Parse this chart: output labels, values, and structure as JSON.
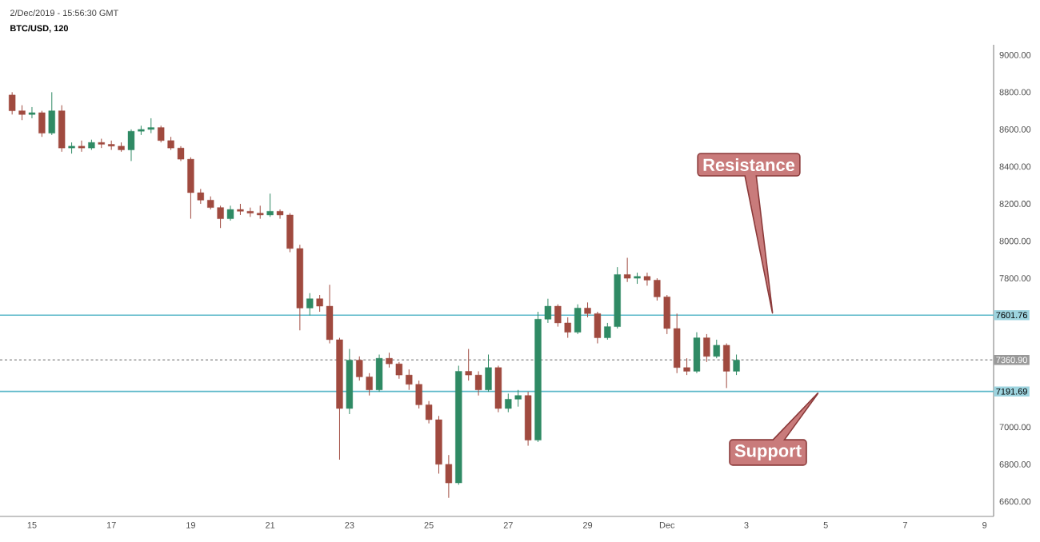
{
  "chart_data": {
    "type": "candlestick",
    "title": "BTC/USD, 120",
    "annotations": [
      "2/Dec/2019 - 15:56:30 GMT",
      "Resistance",
      "Support"
    ],
    "x": [
      "2019-11-14T12:00",
      "2019-11-14T18:00",
      "2019-11-15T00:00",
      "2019-11-15T06:00",
      "2019-11-15T12:00",
      "2019-11-15T18:00",
      "2019-11-16T00:00",
      "2019-11-16T06:00",
      "2019-11-16T12:00",
      "2019-11-16T18:00",
      "2019-11-17T00:00",
      "2019-11-17T06:00",
      "2019-11-17T12:00",
      "2019-11-17T18:00",
      "2019-11-18T00:00",
      "2019-11-18T06:00",
      "2019-11-18T12:00",
      "2019-11-18T18:00",
      "2019-11-19T00:00",
      "2019-11-19T06:00",
      "2019-11-19T12:00",
      "2019-11-19T18:00",
      "2019-11-20T00:00",
      "2019-11-20T06:00",
      "2019-11-20T12:00",
      "2019-11-20T18:00",
      "2019-11-21T00:00",
      "2019-11-21T06:00",
      "2019-11-21T12:00",
      "2019-11-21T18:00",
      "2019-11-22T00:00",
      "2019-11-22T06:00",
      "2019-11-22T12:00",
      "2019-11-22T18:00",
      "2019-11-23T00:00",
      "2019-11-23T06:00",
      "2019-11-23T12:00",
      "2019-11-23T18:00",
      "2019-11-24T00:00",
      "2019-11-24T06:00",
      "2019-11-24T12:00",
      "2019-11-24T18:00",
      "2019-11-25T00:00",
      "2019-11-25T06:00",
      "2019-11-25T12:00",
      "2019-11-25T18:00",
      "2019-11-26T00:00",
      "2019-11-26T06:00",
      "2019-11-26T12:00",
      "2019-11-26T18:00",
      "2019-11-27T00:00",
      "2019-11-27T06:00",
      "2019-11-27T12:00",
      "2019-11-27T18:00",
      "2019-11-28T00:00",
      "2019-11-28T06:00",
      "2019-11-28T12:00",
      "2019-11-28T18:00",
      "2019-11-29T00:00",
      "2019-11-29T06:00",
      "2019-11-29T12:00",
      "2019-11-29T18:00",
      "2019-11-30T00:00",
      "2019-11-30T06:00",
      "2019-11-30T12:00",
      "2019-11-30T18:00",
      "2019-12-01T00:00",
      "2019-12-01T06:00",
      "2019-12-01T12:00",
      "2019-12-01T18:00",
      "2019-12-02T00:00",
      "2019-12-02T06:00",
      "2019-12-02T12:00",
      "2019-12-02T18:00"
    ],
    "ohlc": [
      [
        8785,
        8800,
        8680,
        8700
      ],
      [
        8700,
        8730,
        8650,
        8680
      ],
      [
        8680,
        8720,
        8660,
        8690
      ],
      [
        8690,
        8700,
        8560,
        8580
      ],
      [
        8580,
        8800,
        8570,
        8700
      ],
      [
        8700,
        8730,
        8480,
        8500
      ],
      [
        8500,
        8530,
        8470,
        8510
      ],
      [
        8510,
        8540,
        8480,
        8500
      ],
      [
        8500,
        8545,
        8490,
        8530
      ],
      [
        8530,
        8550,
        8500,
        8520
      ],
      [
        8520,
        8540,
        8490,
        8510
      ],
      [
        8510,
        8530,
        8480,
        8490
      ],
      [
        8490,
        8600,
        8430,
        8590
      ],
      [
        8590,
        8620,
        8570,
        8600
      ],
      [
        8600,
        8660,
        8580,
        8610
      ],
      [
        8610,
        8620,
        8530,
        8540
      ],
      [
        8540,
        8560,
        8490,
        8500
      ],
      [
        8500,
        8510,
        8430,
        8440
      ],
      [
        8440,
        8450,
        8120,
        8260
      ],
      [
        8260,
        8280,
        8200,
        8220
      ],
      [
        8220,
        8240,
        8170,
        8180
      ],
      [
        8180,
        8190,
        8070,
        8120
      ],
      [
        8120,
        8190,
        8110,
        8170
      ],
      [
        8170,
        8200,
        8140,
        8160
      ],
      [
        8160,
        8180,
        8130,
        8150
      ],
      [
        8150,
        8190,
        8120,
        8140
      ],
      [
        8140,
        8255,
        8130,
        8160
      ],
      [
        8160,
        8170,
        8120,
        8140
      ],
      [
        8140,
        8150,
        7940,
        7960
      ],
      [
        7960,
        7980,
        7520,
        7640
      ],
      [
        7640,
        7720,
        7600,
        7690
      ],
      [
        7690,
        7710,
        7620,
        7650
      ],
      [
        7650,
        7765,
        7450,
        7470
      ],
      [
        7470,
        7480,
        6825,
        7100
      ],
      [
        7100,
        7420,
        7070,
        7360
      ],
      [
        7360,
        7380,
        7250,
        7270
      ],
      [
        7270,
        7290,
        7170,
        7200
      ],
      [
        7200,
        7390,
        7190,
        7370
      ],
      [
        7370,
        7400,
        7320,
        7340
      ],
      [
        7340,
        7350,
        7260,
        7280
      ],
      [
        7280,
        7310,
        7200,
        7230
      ],
      [
        7230,
        7250,
        7100,
        7120
      ],
      [
        7120,
        7140,
        7020,
        7040
      ],
      [
        7040,
        7060,
        6750,
        6800
      ],
      [
        6800,
        6850,
        6620,
        6700
      ],
      [
        6700,
        7330,
        6690,
        7300
      ],
      [
        7300,
        7420,
        7250,
        7280
      ],
      [
        7280,
        7300,
        7170,
        7200
      ],
      [
        7200,
        7390,
        7190,
        7320
      ],
      [
        7320,
        7330,
        7080,
        7100
      ],
      [
        7100,
        7180,
        7080,
        7150
      ],
      [
        7150,
        7200,
        7110,
        7170
      ],
      [
        7170,
        7190,
        6900,
        6930
      ],
      [
        6930,
        7620,
        6920,
        7580
      ],
      [
        7580,
        7690,
        7560,
        7650
      ],
      [
        7650,
        7660,
        7540,
        7560
      ],
      [
        7560,
        7590,
        7480,
        7510
      ],
      [
        7510,
        7660,
        7500,
        7640
      ],
      [
        7640,
        7670,
        7590,
        7610
      ],
      [
        7610,
        7620,
        7450,
        7480
      ],
      [
        7480,
        7560,
        7470,
        7540
      ],
      [
        7540,
        7860,
        7530,
        7820
      ],
      [
        7820,
        7910,
        7780,
        7800
      ],
      [
        7800,
        7830,
        7770,
        7810
      ],
      [
        7810,
        7830,
        7760,
        7790
      ],
      [
        7790,
        7800,
        7680,
        7700
      ],
      [
        7700,
        7710,
        7500,
        7530
      ],
      [
        7530,
        7610,
        7290,
        7320
      ],
      [
        7320,
        7370,
        7280,
        7300
      ],
      [
        7300,
        7510,
        7290,
        7480
      ],
      [
        7480,
        7500,
        7350,
        7380
      ],
      [
        7380,
        7470,
        7370,
        7440
      ],
      [
        7440,
        7450,
        7210,
        7300
      ],
      [
        7300,
        7390,
        7280,
        7360
      ]
    ],
    "colors": [
      "#a04a3f",
      "#a04a3f",
      "#2f8a64",
      "#a04a3f",
      "#2f8a64",
      "#a04a3f",
      "#2f8a64",
      "#a04a3f",
      "#2f8a64",
      "#a04a3f",
      "#a04a3f",
      "#a04a3f",
      "#2f8a64",
      "#2f8a64",
      "#2f8a64",
      "#a04a3f",
      "#a04a3f",
      "#a04a3f",
      "#a04a3f",
      "#a04a3f",
      "#a04a3f",
      "#a04a3f",
      "#2f8a64",
      "#a04a3f",
      "#a04a3f",
      "#a04a3f",
      "#2f8a64",
      "#a04a3f",
      "#a04a3f",
      "#a04a3f",
      "#2f8a64",
      "#a04a3f",
      "#a04a3f",
      "#a04a3f",
      "#2f8a64",
      "#a04a3f",
      "#a04a3f",
      "#2f8a64",
      "#a04a3f",
      "#a04a3f",
      "#a04a3f",
      "#a04a3f",
      "#a04a3f",
      "#a04a3f",
      "#a04a3f",
      "#2f8a64",
      "#a04a3f",
      "#a04a3f",
      "#2f8a64",
      "#a04a3f",
      "#2f8a64",
      "#2f8a64",
      "#a04a3f",
      "#2f8a64",
      "#2f8a64",
      "#a04a3f",
      "#a04a3f",
      "#2f8a64",
      "#a04a3f",
      "#a04a3f",
      "#2f8a64",
      "#2f8a64",
      "#a04a3f",
      "#2f8a64",
      "#a04a3f",
      "#a04a3f",
      "#a04a3f",
      "#a04a3f",
      "#a04a3f",
      "#2f8a64",
      "#a04a3f",
      "#2f8a64",
      "#a04a3f",
      "#2f8a64"
    ],
    "xlim": [
      "2019-11-14T04:40",
      "2019-12-09T05:30"
    ],
    "xticks": [
      {
        "value": "2019-11-15",
        "label": "15"
      },
      {
        "value": "2019-11-17",
        "label": "17"
      },
      {
        "value": "2019-11-19",
        "label": "19"
      },
      {
        "value": "2019-11-21",
        "label": "21"
      },
      {
        "value": "2019-11-23",
        "label": "23"
      },
      {
        "value": "2019-11-25",
        "label": "25"
      },
      {
        "value": "2019-11-27",
        "label": "27"
      },
      {
        "value": "2019-11-29",
        "label": "29"
      },
      {
        "value": "2019-12-01",
        "label": "Dec"
      },
      {
        "value": "2019-12-03",
        "label": "3"
      },
      {
        "value": "2019-12-05",
        "label": "5"
      },
      {
        "value": "2019-12-07",
        "label": "7"
      },
      {
        "value": "2019-12-09",
        "label": "9"
      }
    ],
    "ylim": [
      6520,
      9055
    ],
    "yticks": [
      {
        "value": 6600,
        "label": "6600.00"
      },
      {
        "value": 6800,
        "label": "6800.00"
      },
      {
        "value": 7000,
        "label": "7000.00"
      },
      {
        "value": 7800,
        "label": "7800.00"
      },
      {
        "value": 8000,
        "label": "8000.00"
      },
      {
        "value": 8200,
        "label": "8200.00"
      },
      {
        "value": 8400,
        "label": "8400.00"
      },
      {
        "value": 8600,
        "label": "8600.00"
      },
      {
        "value": 8800,
        "label": "8800.00"
      },
      {
        "value": 9000,
        "label": "9000.00"
      }
    ],
    "ref_lines": [
      {
        "axis": "y",
        "value": 7601.76,
        "label": "7601.76",
        "color": "#5bb8c9",
        "line_style": "solid"
      },
      {
        "axis": "y",
        "value": 7360.9,
        "label": "7360.90",
        "color": "#999999",
        "line_style": "dashed"
      },
      {
        "axis": "y",
        "value": 7191.69,
        "label": "7191.69",
        "color": "#5bb8c9",
        "line_style": "solid"
      }
    ],
    "grid": false
  }
}
